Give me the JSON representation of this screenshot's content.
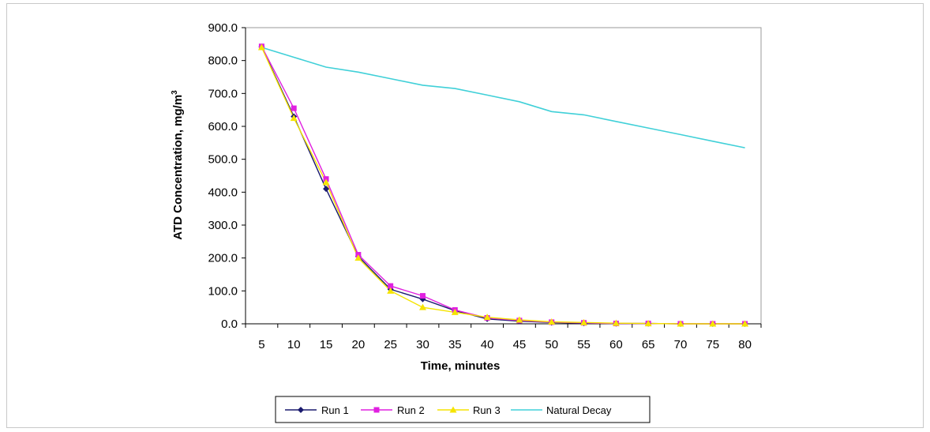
{
  "chart_data": {
    "type": "line",
    "xlabel": "Time, minutes",
    "ylabel": "ATD Concentration, mg/m",
    "ylabel_superscript": "3",
    "x": [
      5,
      10,
      15,
      20,
      25,
      30,
      35,
      40,
      45,
      50,
      55,
      60,
      65,
      70,
      75,
      80
    ],
    "ylim": [
      0,
      900
    ],
    "yticks": [
      "0.0",
      "100.0",
      "200.0",
      "300.0",
      "400.0",
      "500.0",
      "600.0",
      "700.0",
      "800.0",
      "900.0"
    ],
    "grid": false,
    "legend_position": "bottom",
    "series": [
      {
        "name": "Run 1",
        "color": "#1a1a6e",
        "marker": "diamond",
        "values": [
          842,
          630,
          410,
          205,
          105,
          75,
          40,
          15,
          8,
          4,
          2,
          1,
          1,
          0,
          0,
          0
        ]
      },
      {
        "name": "Run 2",
        "color": "#e020e0",
        "marker": "square",
        "values": [
          843,
          655,
          440,
          210,
          115,
          85,
          42,
          18,
          10,
          5,
          3,
          1,
          1,
          0,
          0,
          0
        ]
      },
      {
        "name": "Run 3",
        "color": "#f5e400",
        "marker": "triangle",
        "values": [
          840,
          625,
          430,
          200,
          100,
          50,
          35,
          20,
          12,
          6,
          4,
          2,
          1,
          0,
          0,
          0
        ]
      },
      {
        "name": "Natural Decay",
        "color": "#40d0d8",
        "marker": "none",
        "values": [
          840,
          810,
          780,
          765,
          745,
          725,
          715,
          695,
          675,
          645,
          635,
          615,
          595,
          575,
          555,
          535
        ]
      }
    ]
  }
}
